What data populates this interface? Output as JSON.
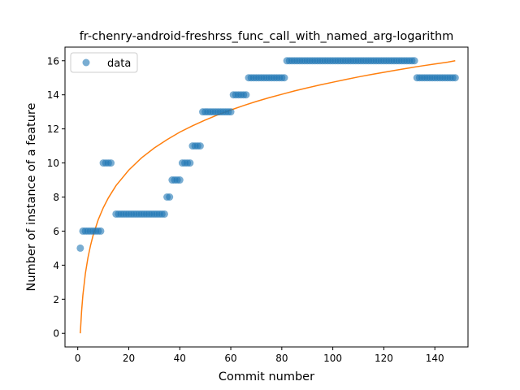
{
  "chart_data": {
    "type": "scatter",
    "title": "fr-chenry-android-freshrss_func_call_with_named_arg-logarithm",
    "xlabel": "Commit number",
    "ylabel": "Number of instance of a feature",
    "xlim": [
      -5,
      153
    ],
    "ylim": [
      -0.8,
      16.8
    ],
    "xticks": [
      0,
      20,
      40,
      60,
      80,
      100,
      120,
      140
    ],
    "yticks": [
      0,
      2,
      4,
      6,
      8,
      10,
      12,
      14,
      16
    ],
    "grid": false,
    "legend_position": "top-left",
    "legend_label": "data",
    "colors": {
      "data": "#1f77b4",
      "fit": "#ff7f0e"
    },
    "series": [
      {
        "name": "data",
        "kind": "scatter",
        "points": [
          [
            1,
            5
          ],
          [
            2,
            6
          ],
          [
            3,
            6
          ],
          [
            4,
            6
          ],
          [
            5,
            6
          ],
          [
            6,
            6
          ],
          [
            7,
            6
          ],
          [
            8,
            6
          ],
          [
            9,
            6
          ],
          [
            10,
            10
          ],
          [
            11,
            10
          ],
          [
            12,
            10
          ],
          [
            13,
            10
          ],
          [
            15,
            7
          ],
          [
            16,
            7
          ],
          [
            17,
            7
          ],
          [
            18,
            7
          ],
          [
            19,
            7
          ],
          [
            20,
            7
          ],
          [
            21,
            7
          ],
          [
            22,
            7
          ],
          [
            23,
            7
          ],
          [
            24,
            7
          ],
          [
            25,
            7
          ],
          [
            26,
            7
          ],
          [
            27,
            7
          ],
          [
            28,
            7
          ],
          [
            29,
            7
          ],
          [
            30,
            7
          ],
          [
            31,
            7
          ],
          [
            32,
            7
          ],
          [
            33,
            7
          ],
          [
            34,
            7
          ],
          [
            35,
            8
          ],
          [
            36,
            8
          ],
          [
            37,
            9
          ],
          [
            38,
            9
          ],
          [
            39,
            9
          ],
          [
            40,
            9
          ],
          [
            41,
            10
          ],
          [
            42,
            10
          ],
          [
            43,
            10
          ],
          [
            44,
            10
          ],
          [
            45,
            11
          ],
          [
            46,
            11
          ],
          [
            47,
            11
          ],
          [
            48,
            11
          ],
          [
            49,
            13
          ],
          [
            50,
            13
          ],
          [
            51,
            13
          ],
          [
            52,
            13
          ],
          [
            53,
            13
          ],
          [
            54,
            13
          ],
          [
            55,
            13
          ],
          [
            56,
            13
          ],
          [
            57,
            13
          ],
          [
            58,
            13
          ],
          [
            59,
            13
          ],
          [
            60,
            13
          ],
          [
            61,
            14
          ],
          [
            62,
            14
          ],
          [
            63,
            14
          ],
          [
            64,
            14
          ],
          [
            65,
            14
          ],
          [
            66,
            14
          ],
          [
            67,
            15
          ],
          [
            68,
            15
          ],
          [
            69,
            15
          ],
          [
            70,
            15
          ],
          [
            71,
            15
          ],
          [
            72,
            15
          ],
          [
            73,
            15
          ],
          [
            74,
            15
          ],
          [
            75,
            15
          ],
          [
            76,
            15
          ],
          [
            77,
            15
          ],
          [
            78,
            15
          ],
          [
            79,
            15
          ],
          [
            80,
            15
          ],
          [
            81,
            15
          ],
          [
            82,
            16
          ],
          [
            83,
            16
          ],
          [
            84,
            16
          ],
          [
            85,
            16
          ],
          [
            86,
            16
          ],
          [
            87,
            16
          ],
          [
            88,
            16
          ],
          [
            89,
            16
          ],
          [
            90,
            16
          ],
          [
            91,
            16
          ],
          [
            92,
            16
          ],
          [
            93,
            16
          ],
          [
            94,
            16
          ],
          [
            95,
            16
          ],
          [
            96,
            16
          ],
          [
            97,
            16
          ],
          [
            98,
            16
          ],
          [
            99,
            16
          ],
          [
            100,
            16
          ],
          [
            101,
            16
          ],
          [
            102,
            16
          ],
          [
            103,
            16
          ],
          [
            104,
            16
          ],
          [
            105,
            16
          ],
          [
            106,
            16
          ],
          [
            107,
            16
          ],
          [
            108,
            16
          ],
          [
            109,
            16
          ],
          [
            110,
            16
          ],
          [
            111,
            16
          ],
          [
            112,
            16
          ],
          [
            113,
            16
          ],
          [
            114,
            16
          ],
          [
            115,
            16
          ],
          [
            116,
            16
          ],
          [
            117,
            16
          ],
          [
            118,
            16
          ],
          [
            119,
            16
          ],
          [
            120,
            16
          ],
          [
            121,
            16
          ],
          [
            122,
            16
          ],
          [
            123,
            16
          ],
          [
            124,
            16
          ],
          [
            125,
            16
          ],
          [
            126,
            16
          ],
          [
            127,
            16
          ],
          [
            128,
            16
          ],
          [
            129,
            16
          ],
          [
            130,
            16
          ],
          [
            131,
            16
          ],
          [
            132,
            16
          ],
          [
            133,
            15
          ],
          [
            134,
            15
          ],
          [
            135,
            15
          ],
          [
            136,
            15
          ],
          [
            137,
            15
          ],
          [
            138,
            15
          ],
          [
            139,
            15
          ],
          [
            140,
            15
          ],
          [
            141,
            15
          ],
          [
            142,
            15
          ],
          [
            143,
            15
          ],
          [
            144,
            15
          ],
          [
            145,
            15
          ],
          [
            146,
            15
          ],
          [
            147,
            15
          ],
          [
            148,
            15
          ]
        ]
      },
      {
        "kind": "line",
        "points": [
          [
            1,
            0.0
          ],
          [
            1.5,
            1.29
          ],
          [
            2,
            2.22
          ],
          [
            3,
            3.52
          ],
          [
            4,
            4.44
          ],
          [
            5,
            5.15
          ],
          [
            6,
            5.74
          ],
          [
            8,
            6.66
          ],
          [
            10,
            7.37
          ],
          [
            12,
            7.95
          ],
          [
            15,
            8.67
          ],
          [
            20,
            9.58
          ],
          [
            25,
            10.3
          ],
          [
            30,
            10.88
          ],
          [
            35,
            11.37
          ],
          [
            40,
            11.81
          ],
          [
            45,
            12.18
          ],
          [
            50,
            12.52
          ],
          [
            55,
            12.83
          ],
          [
            60,
            13.11
          ],
          [
            65,
            13.37
          ],
          [
            70,
            13.61
          ],
          [
            75,
            13.83
          ],
          [
            80,
            14.03
          ],
          [
            85,
            14.23
          ],
          [
            90,
            14.41
          ],
          [
            95,
            14.58
          ],
          [
            100,
            14.74
          ],
          [
            105,
            14.9
          ],
          [
            110,
            15.05
          ],
          [
            115,
            15.19
          ],
          [
            120,
            15.32
          ],
          [
            125,
            15.45
          ],
          [
            130,
            15.58
          ],
          [
            135,
            15.7
          ],
          [
            140,
            15.81
          ],
          [
            145,
            15.92
          ],
          [
            148,
            16.0
          ]
        ]
      }
    ]
  }
}
